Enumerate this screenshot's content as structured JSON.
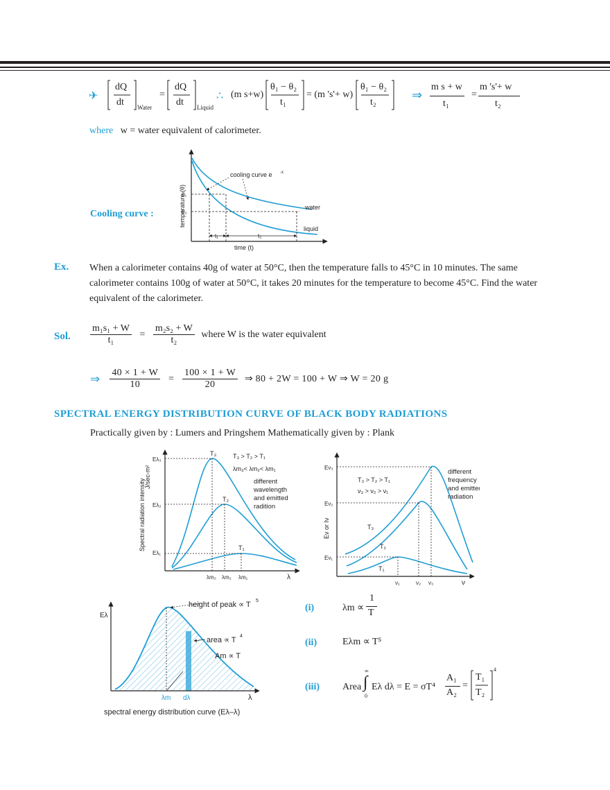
{
  "header_eq": {
    "arrow": "✈",
    "dq": "dQ",
    "dt": "dt",
    "water_sub": "Water",
    "liquid_sub": "Liquid",
    "eq": "=",
    "therefore": "∴",
    "lhs_factor": "(m s+w)",
    "theta_diff": "θ₁ − θ₂",
    "t1": "t₁",
    "rhs_factor": "= (m 's'+ w)",
    "t2": "t₂",
    "implies": "⇒",
    "num1": "m s + w",
    "num2": "m 's'+ w"
  },
  "where_line": {
    "label": "where",
    "text": "w = water equivalent of calorimeter."
  },
  "cooling": {
    "label": "Cooling curve :",
    "ylabel": "temperature (θ)",
    "xlabel": "time (t)",
    "curve_label": "cooling curve e",
    "curve_exp": "-x",
    "theta1": "θ₁",
    "theta2": "θ₂",
    "water": "water",
    "liquid": "liquid",
    "t1": "t₁",
    "t2": "t₂"
  },
  "example": {
    "label": "Ex.",
    "text": "When a calorimeter contains 40g of water at 50°C, then the temperature falls to 45°C in 10 minutes. The same calorimeter contains 100g of water at 50°C, it takes 20 minutes for the temperature to become 45°C. Find the water equivalent of the calorimeter."
  },
  "solution": {
    "label": "Sol.",
    "num1": "m₁s₁ + W",
    "den1": "t₁",
    "num2": "m₂s₂ + W",
    "den2": "t₂",
    "eq": "=",
    "where": "where W is the water equivalent",
    "implies": "⇒",
    "num3": "40 × 1 + W",
    "den3": "10",
    "num4": "100 × 1 + W",
    "den4": "20",
    "line2_rest": "⇒  80 + 2W = 100 + W ⇒ W = 20 g"
  },
  "section_title": "SPECTRAL ENERGY DISTRIBUTION CURVE OF BLACK BODY RADIATIONS",
  "practically": "Practically given by : Lumers and Pringshem  Mathematically given by : Plank",
  "graph_lambda": {
    "ylabel_top": "J/sec-m²",
    "ylabel": "Spectral radiation intensity",
    "order_T": "T₃ > T₂ > T₁",
    "order_lambda": "λm₃< λm₂< λm₁",
    "note1": "different",
    "note2": "wavelength",
    "note3": "and emitted",
    "note4": "radition",
    "E3": "Eλ₃",
    "E2": "Eλ₂",
    "E1": "Eλ₁",
    "T3": "T₃",
    "T2": "T₂",
    "T1": "T₁",
    "lm3": "λm₃",
    "lm2": "λm₂",
    "lm1": "λm₁",
    "x": "λ"
  },
  "graph_nu": {
    "ylabel": "Eν or Iν",
    "order_T": "T₃ > T₂ > T₁",
    "order_nu": "ν₃ > ν₂ > ν₁",
    "note1": "different",
    "note2": "frequency",
    "note3": "and emitted",
    "note4": "radiation",
    "E3": "Eν₃",
    "E2": "Eν₂",
    "E1": "Eν₁",
    "T3": "T₃",
    "T2": "T₂",
    "T1": "T₁",
    "n1": "ν₁",
    "n2": "ν₂",
    "n3": "ν₃",
    "x": "ν"
  },
  "graph_area": {
    "ylabel": "Eλ",
    "peak": "height of peak ∝ T",
    "peak_exp": "5",
    "area": "area ∝ T",
    "area_exp": "4",
    "am": "Am ∝ T",
    "lm": "λm",
    "dl": "dλ",
    "x": "λ",
    "caption": "spectral energy distribution curve (Eλ–λ)"
  },
  "laws": {
    "i_label": "(i)",
    "i_lhs": "λm ∝",
    "i_num": "1",
    "i_den": "T",
    "ii_label": "(ii)",
    "ii_text": "Eλm ∝ T⁵",
    "iii_label": "(iii)",
    "iii_area": "Area",
    "iii_int_top": "∞",
    "iii_int_bot": "0",
    "iii_text": "Eλ dλ = E = σT⁴",
    "iii_a1": "A₁",
    "iii_a2": "A₂",
    "iii_t1": "T₁",
    "iii_t2": "T₂",
    "iii_exp": "4"
  }
}
